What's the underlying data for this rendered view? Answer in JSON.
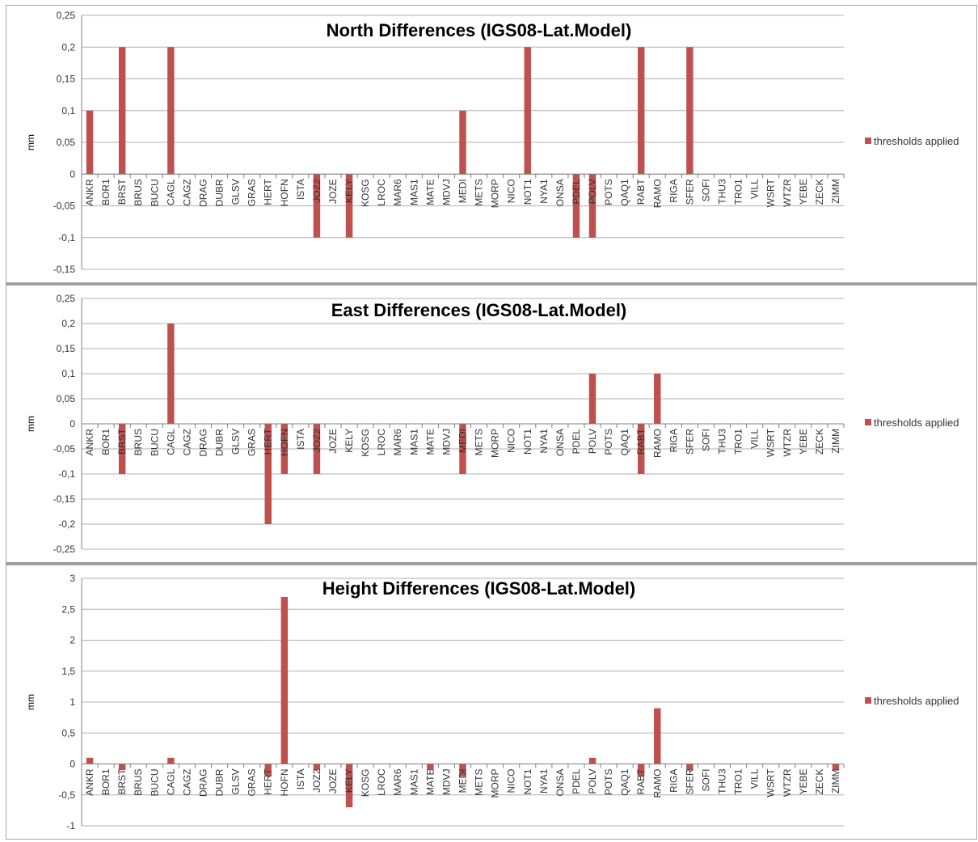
{
  "legend_label": "thresholds applied",
  "colors": {
    "bar": "#c0504d",
    "grid": "#b0b0b0",
    "axis": "#808080"
  },
  "chart_data": [
    {
      "type": "bar",
      "title": "North Differences (IGS08-Lat.Model)",
      "ylabel": "mm",
      "ylim": [
        -0.15,
        0.25
      ],
      "yticks": [
        "0,25",
        "0,2",
        "0,15",
        "0,1",
        "0,05",
        "0",
        "-0,05",
        "-0,1",
        "-0,15"
      ],
      "ytick_values": [
        0.25,
        0.2,
        0.15,
        0.1,
        0.05,
        0,
        -0.05,
        -0.1,
        -0.15
      ],
      "grid": true,
      "legend": "right",
      "series": [
        {
          "name": "thresholds applied",
          "values": [
            0.1,
            0,
            0.2,
            0,
            0,
            0.2,
            0,
            0,
            0,
            0,
            0,
            0,
            0,
            0,
            -0.1,
            0,
            -0.1,
            0,
            0,
            0,
            0,
            0,
            0,
            0.1,
            0,
            0,
            0,
            0.2,
            0,
            0,
            -0.1,
            -0.1,
            0,
            0,
            0.2,
            0,
            0,
            0.2,
            0,
            0,
            0,
            0,
            0,
            0,
            0,
            0,
            0
          ]
        }
      ],
      "categories": [
        "ANKR",
        "BOR1",
        "BRST",
        "BRUS",
        "BUCU",
        "CAGL",
        "CAGZ",
        "DRAG",
        "DUBR",
        "GLSV",
        "GRAS",
        "HERT",
        "HOFN",
        "ISTA",
        "JOZ2",
        "JOZE",
        "KELY",
        "KOSG",
        "LROC",
        "MAR6",
        "MAS1",
        "MATE",
        "MDVJ",
        "MEDI",
        "METS",
        "MORP",
        "NICO",
        "NOT1",
        "NYA1",
        "ONSA",
        "PDEL",
        "POLV",
        "POTS",
        "QAQ1",
        "RABT",
        "RAMO",
        "RIGA",
        "SFER",
        "SOFI",
        "THU3",
        "TRO1",
        "VILL",
        "WSRT",
        "WTZR",
        "YEBE",
        "ZECK",
        "ZIMM"
      ]
    },
    {
      "type": "bar",
      "title": "East Differences (IGS08-Lat.Model)",
      "ylabel": "mm",
      "ylim": [
        -0.25,
        0.25
      ],
      "yticks": [
        "0,25",
        "0,2",
        "0,15",
        "0,1",
        "0,05",
        "0",
        "-0,05",
        "-0,1",
        "-0,15",
        "-0,2",
        "-0,25"
      ],
      "ytick_values": [
        0.25,
        0.2,
        0.15,
        0.1,
        0.05,
        0,
        -0.05,
        -0.1,
        -0.15,
        -0.2,
        -0.25
      ],
      "grid": true,
      "legend": "right",
      "series": [
        {
          "name": "thresholds applied",
          "values": [
            0,
            0,
            -0.1,
            0,
            0,
            0.2,
            0,
            0,
            0,
            0,
            0,
            -0.2,
            -0.1,
            0,
            -0.1,
            0,
            0,
            0,
            0,
            0,
            0,
            0,
            0,
            -0.1,
            0,
            0,
            0,
            0,
            0,
            0,
            0,
            0.1,
            0,
            0,
            -0.1,
            0.1,
            0,
            0,
            0,
            0,
            0,
            0,
            0,
            0,
            0,
            0,
            0
          ]
        }
      ],
      "categories": [
        "ANKR",
        "BOR1",
        "BRST",
        "BRUS",
        "BUCU",
        "CAGL",
        "CAGZ",
        "DRAG",
        "DUBR",
        "GLSV",
        "GRAS",
        "HERT",
        "HOFN",
        "ISTA",
        "JOZ2",
        "JOZE",
        "KELY",
        "KOSG",
        "LROC",
        "MAR6",
        "MAS1",
        "MATE",
        "MDVJ",
        "MEDI",
        "METS",
        "MORP",
        "NICO",
        "NOT1",
        "NYA1",
        "ONSA",
        "PDEL",
        "POLV",
        "POTS",
        "QAQ1",
        "RABT",
        "RAMO",
        "RIGA",
        "SFER",
        "SOFI",
        "THU3",
        "TRO1",
        "VILL",
        "WSRT",
        "WTZR",
        "YEBE",
        "ZECK",
        "ZIMM"
      ]
    },
    {
      "type": "bar",
      "title": "Height Differences (IGS08-Lat.Model)",
      "ylabel": "mm",
      "ylim": [
        -1,
        3
      ],
      "yticks": [
        "3",
        "2,5",
        "2",
        "1,5",
        "1",
        "0,5",
        "0",
        "-0,5",
        "-1"
      ],
      "ytick_values": [
        3,
        2.5,
        2,
        1.5,
        1,
        0.5,
        0,
        -0.5,
        -1
      ],
      "grid": true,
      "legend": "right",
      "series": [
        {
          "name": "thresholds applied",
          "values": [
            0.1,
            0,
            -0.1,
            0,
            0,
            0.1,
            0,
            0,
            0,
            0,
            0,
            -0.2,
            2.7,
            0,
            -0.1,
            0,
            -0.7,
            0,
            0,
            0,
            0,
            -0.1,
            0,
            -0.2,
            0,
            0,
            0,
            0,
            0,
            0,
            0,
            0.1,
            0,
            0,
            -0.2,
            0.9,
            0,
            -0.1,
            0,
            0,
            0,
            0,
            0,
            0,
            0,
            0,
            -0.1
          ]
        }
      ],
      "categories": [
        "ANKR",
        "BOR1",
        "BRST",
        "BRUS",
        "BUCU",
        "CAGL",
        "CAGZ",
        "DRAG",
        "DUBR",
        "GLSV",
        "GRAS",
        "HERT",
        "HOFN",
        "ISTA",
        "JOZ2",
        "JOZE",
        "KELY",
        "KOSG",
        "LROC",
        "MAR6",
        "MAS1",
        "MATE",
        "MDVJ",
        "MEDI",
        "METS",
        "MORP",
        "NICO",
        "NOT1",
        "NYA1",
        "ONSA",
        "PDEL",
        "POLV",
        "POTS",
        "QAQ1",
        "RABT",
        "RAMO",
        "RIGA",
        "SFER",
        "SOFI",
        "THU3",
        "TRO1",
        "VILL",
        "WSRT",
        "WTZR",
        "YEBE",
        "ZECK",
        "ZIMM"
      ]
    }
  ]
}
